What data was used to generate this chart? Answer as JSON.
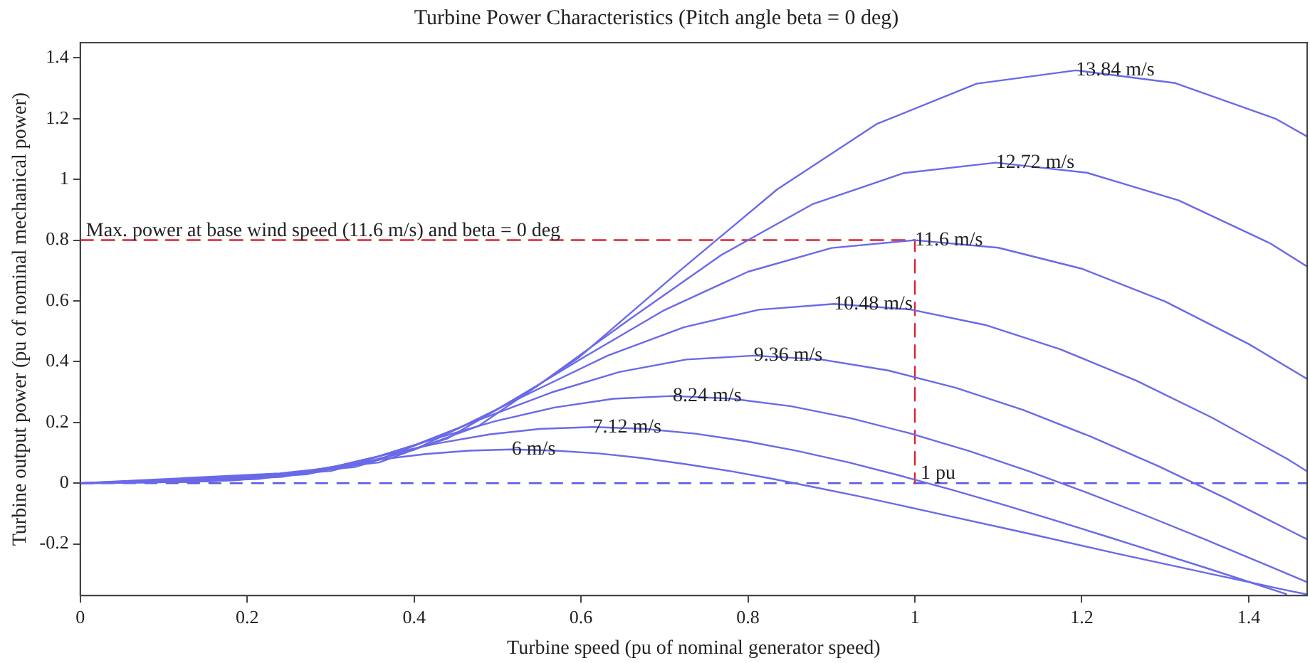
{
  "chart_data": {
    "type": "line",
    "title": "Turbine Power Characteristics (Pitch angle beta = 0 deg)",
    "xlabel": "Turbine speed (pu of nominal generator speed)",
    "ylabel": "Turbine output power (pu of nominal mechanical power)",
    "xlim": [
      0,
      1.47
    ],
    "ylim": [
      -0.37,
      1.45
    ],
    "xticks": [
      0,
      0.2,
      0.4,
      0.6,
      0.8,
      1,
      1.2,
      1.4
    ],
    "yticks": [
      -0.2,
      0,
      0.2,
      0.4,
      0.6,
      0.8,
      1,
      1.2,
      1.4
    ],
    "grid": false,
    "legend": false,
    "marker": "none",
    "line_style": "solid",
    "series": [
      {
        "name": "6 m/s",
        "color": "#6a6ae8",
        "x": [
          0,
          0.052,
          0.103,
          0.155,
          0.207,
          0.259,
          0.31,
          0.362,
          0.414,
          0.466,
          0.517,
          0.569,
          0.621,
          0.672,
          0.724,
          0.776,
          0.828,
          0.879,
          0.931,
          0.983,
          1.034,
          1.138,
          1.241,
          1.345,
          1.448,
          1.47
        ],
        "values": [
          0,
          0.001,
          0.003,
          0.006,
          0.015,
          0.034,
          0.057,
          0.079,
          0.096,
          0.107,
          0.111,
          0.107,
          0.098,
          0.083,
          0.063,
          0.041,
          0.015,
          -0.013,
          -0.042,
          -0.073,
          -0.104,
          -0.167,
          -0.231,
          -0.293,
          -0.354,
          -0.366
        ]
      },
      {
        "name": "7.12 m/s",
        "color": "#6a6ae8",
        "x": [
          0,
          0.061,
          0.123,
          0.184,
          0.246,
          0.307,
          0.368,
          0.43,
          0.491,
          0.552,
          0.614,
          0.675,
          0.737,
          0.798,
          0.859,
          0.921,
          0.982,
          1.043,
          1.105,
          1.166,
          1.228,
          1.35,
          1.445
        ],
        "values": [
          0,
          0.002,
          0.004,
          0.009,
          0.026,
          0.056,
          0.095,
          0.132,
          0.161,
          0.179,
          0.185,
          0.179,
          0.163,
          0.138,
          0.106,
          0.068,
          0.025,
          -0.021,
          -0.07,
          -0.121,
          -0.174,
          -0.28,
          -0.365
        ]
      },
      {
        "name": "8.24 m/s",
        "color": "#6a6ae8",
        "x": [
          0,
          0.071,
          0.142,
          0.213,
          0.284,
          0.355,
          0.426,
          0.497,
          0.568,
          0.639,
          0.71,
          0.781,
          0.852,
          0.923,
          0.994,
          1.066,
          1.137,
          1.208,
          1.279,
          1.35,
          1.421,
          1.47
        ],
        "values": [
          0,
          0.003,
          0.007,
          0.014,
          0.04,
          0.087,
          0.147,
          0.204,
          0.249,
          0.278,
          0.287,
          0.278,
          0.253,
          0.214,
          0.164,
          0.105,
          0.039,
          -0.033,
          -0.109,
          -0.188,
          -0.269,
          -0.326
        ]
      },
      {
        "name": "9.36 m/s",
        "color": "#6a6ae8",
        "x": [
          0,
          0.081,
          0.161,
          0.242,
          0.323,
          0.403,
          0.484,
          0.565,
          0.646,
          0.726,
          0.807,
          0.888,
          0.968,
          1.049,
          1.13,
          1.21,
          1.291,
          1.372,
          1.452,
          1.47
        ],
        "values": [
          0,
          0.005,
          0.01,
          0.021,
          0.058,
          0.128,
          0.215,
          0.299,
          0.366,
          0.407,
          0.42,
          0.407,
          0.371,
          0.314,
          0.241,
          0.154,
          0.057,
          -0.049,
          -0.16,
          -0.185
        ]
      },
      {
        "name": "10.48 m/s",
        "color": "#6a6ae8",
        "x": [
          0,
          0.09,
          0.181,
          0.271,
          0.361,
          0.452,
          0.542,
          0.632,
          0.723,
          0.813,
          0.903,
          0.994,
          1.084,
          1.174,
          1.265,
          1.355,
          1.446,
          1.47
        ],
        "values": [
          0,
          0.007,
          0.014,
          0.029,
          0.081,
          0.179,
          0.301,
          0.42,
          0.513,
          0.571,
          0.59,
          0.572,
          0.521,
          0.441,
          0.338,
          0.217,
          0.08,
          0.039
        ]
      },
      {
        "name": "11.6 m/s",
        "color": "#6a6ae8",
        "x": [
          0,
          0.1,
          0.2,
          0.3,
          0.4,
          0.5,
          0.6,
          0.7,
          0.8,
          0.9,
          1,
          1.1,
          1.2,
          1.3,
          1.4,
          1.47
        ],
        "values": [
          0,
          0.009,
          0.019,
          0.04,
          0.11,
          0.243,
          0.409,
          0.57,
          0.696,
          0.774,
          0.8,
          0.775,
          0.706,
          0.598,
          0.458,
          0.343
        ]
      },
      {
        "name": "12.72 m/s",
        "color": "#6a6ae8",
        "x": [
          0,
          0.11,
          0.219,
          0.329,
          0.439,
          0.548,
          0.658,
          0.768,
          0.877,
          0.987,
          1.097,
          1.206,
          1.316,
          1.426,
          1.47
        ],
        "values": [
          0,
          0.012,
          0.025,
          0.053,
          0.146,
          0.321,
          0.539,
          0.751,
          0.918,
          1.021,
          1.055,
          1.022,
          0.931,
          0.789,
          0.713
        ]
      },
      {
        "name": "13.84 m/s",
        "color": "#6a6ae8",
        "x": [
          0,
          0.119,
          0.239,
          0.358,
          0.477,
          0.597,
          0.716,
          0.835,
          0.954,
          1.074,
          1.193,
          1.312,
          1.432,
          1.47
        ],
        "values": [
          0,
          0.016,
          0.032,
          0.068,
          0.188,
          0.413,
          0.694,
          0.967,
          1.182,
          1.315,
          1.359,
          1.317,
          1.2,
          1.141
        ]
      },
      {
        "color": "#dd2233",
        "line_style": "dashed",
        "x": [
          0,
          1,
          1
        ],
        "values": [
          0.8,
          0.8,
          0
        ]
      }
    ],
    "ref_lines": [
      {
        "axis": "y",
        "value": 0,
        "color": "#5a5ae0",
        "line_style": "dashed"
      }
    ],
    "annotations": [
      {
        "text": "Max. power at base wind speed (11.6 m/s) and beta = 0 deg",
        "x": 0,
        "y": 0.8
      },
      {
        "text": "1 pu",
        "x": 1,
        "y": 0
      }
    ]
  }
}
